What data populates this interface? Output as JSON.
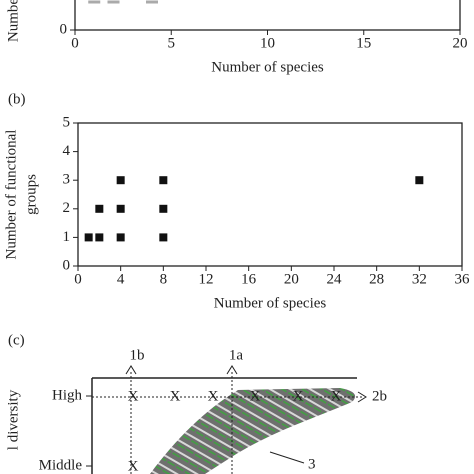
{
  "chart_data": [
    {
      "type": "scatter",
      "ylabel": [
        "Numbe"
      ],
      "xlabel": "Number of species",
      "x": [
        1,
        2,
        4
      ],
      "values": [
        1,
        1,
        1
      ],
      "color": "#aaaaaa",
      "marker": "dash",
      "xlim": [
        0,
        20
      ],
      "xticks": [
        0,
        5,
        10,
        15,
        20
      ],
      "ylim": [
        0,
        1.5
      ],
      "yticks": [
        0
      ]
    },
    {
      "type": "scatter",
      "panel": "(b)",
      "ylabel": [
        "Number of functional",
        "groups"
      ],
      "xlabel": "Number of species",
      "x": [
        1,
        2,
        2,
        4,
        4,
        4,
        8,
        8,
        8,
        32
      ],
      "values": [
        1,
        1,
        2,
        1,
        2,
        3,
        1,
        2,
        3,
        3
      ],
      "color": "#111111",
      "marker": "square",
      "xlim": [
        0,
        36
      ],
      "xticks": [
        0,
        4,
        8,
        12,
        16,
        20,
        24,
        28,
        32,
        36
      ],
      "ylim": [
        0,
        5
      ],
      "yticks": [
        0,
        1,
        2,
        3,
        4,
        5
      ]
    }
  ],
  "diagram": {
    "panel": "(c)",
    "axis_label": "l diversity",
    "levels": [
      "High",
      "Middle"
    ],
    "arrows": [
      "1b",
      "1a",
      "2b"
    ],
    "marker": "X",
    "callout": "3"
  }
}
